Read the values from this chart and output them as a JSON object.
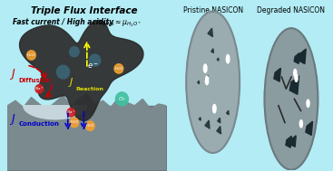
{
  "title": "Triple Flux Interface",
  "subtitle": "Fast current / High acidity",
  "equation": "μₙᵣ ≈ μₕ₂ₒ⁺",
  "label_diffusion": "J",
  "label_diffusion_sub": "Diffusion",
  "label_reaction": "J",
  "label_reaction_sub": "Reaction",
  "label_conduction": "J",
  "label_conduction_sub": "Conduction",
  "label_electron": "e⁻",
  "label_pristine": "Pristine NASICON",
  "label_degraded": "Degraded NASICON",
  "bg_color": "#b3ecf5",
  "bg_color2": "#8ad4e8",
  "solid_color": "#5a5a5a",
  "electrolyte_color": "#b8c8d0",
  "circle_color": "#8fa8b0",
  "diffusion_color": "#cc0000",
  "conduction_color": "#0000cc",
  "reaction_color": "#cccc00",
  "title_color": "#000000",
  "subtitle_color": "#000000"
}
